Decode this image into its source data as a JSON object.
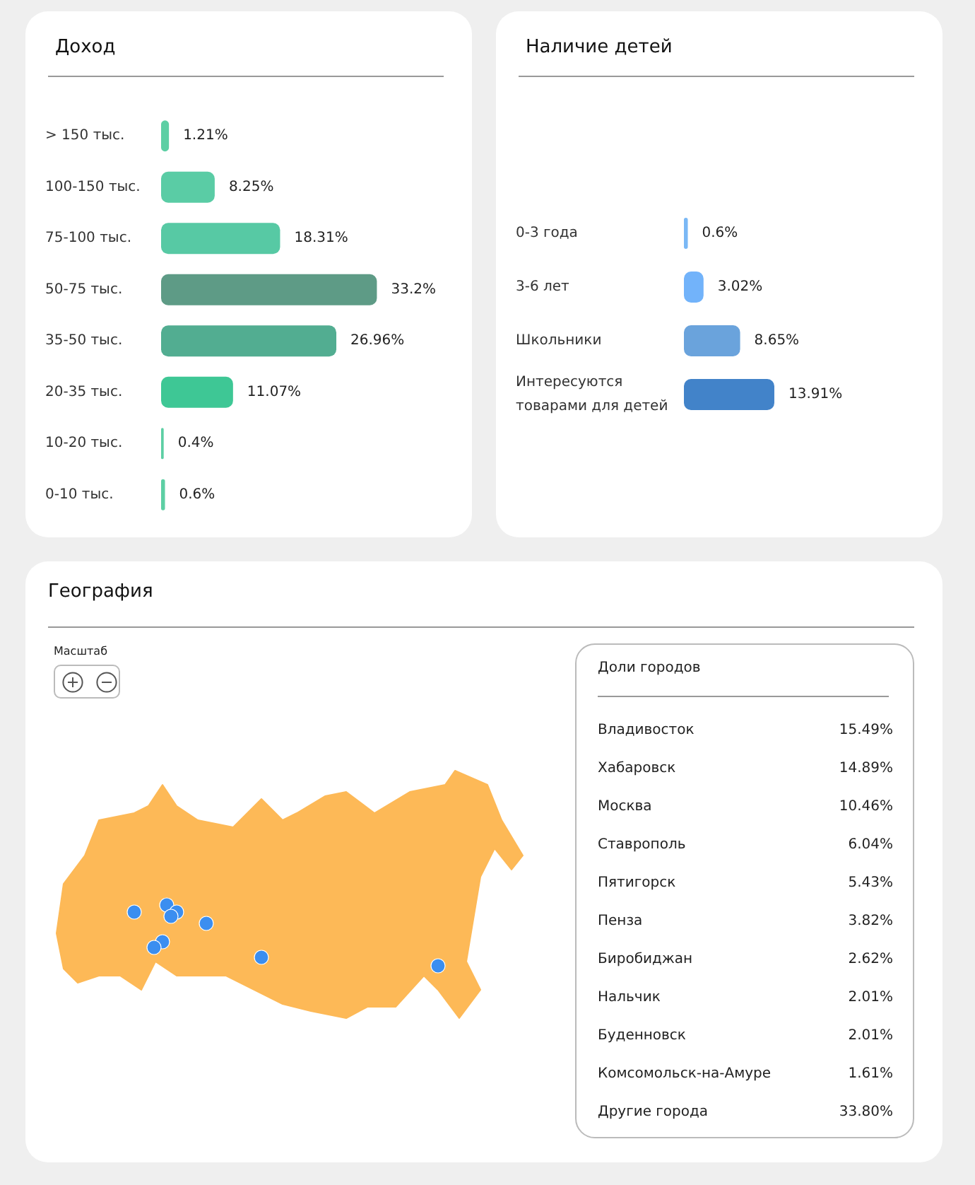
{
  "chart_data": [
    {
      "type": "bar",
      "orientation": "horizontal",
      "title": "Доход",
      "categories": [
        "> 150 тыс.",
        "100-150 тыс.",
        "75-100 тыс.",
        "50-75 тыс.",
        "35-50 тыс.",
        "20-35 тыс.",
        "10-20 тыс.",
        "0-10 тыс."
      ],
      "values": [
        1.21,
        8.25,
        18.31,
        33.2,
        26.96,
        11.07,
        0.4,
        0.6
      ],
      "value_labels": [
        "1.21%",
        "8.25%",
        "18.31%",
        "33.2%",
        "26.96%",
        "11.07%",
        "0.4%",
        "0.6%"
      ],
      "colors": [
        "#5dcfa4",
        "#5acca5",
        "#57c9a4",
        "#5e9b86",
        "#52ad91",
        "#3ec795",
        "#5dcfa4",
        "#5dcfa4"
      ]
    },
    {
      "type": "bar",
      "orientation": "horizontal",
      "title": "Наличие детей",
      "categories": [
        "0-3 года",
        "3-6 лет",
        "Школьники",
        "Интересуются товарами для детей"
      ],
      "values": [
        0.6,
        3.02,
        8.65,
        13.91
      ],
      "value_labels": [
        "0.6%",
        "3.02%",
        "8.65%",
        "13.91%"
      ],
      "colors": [
        "#7ab8f5",
        "#72b3fa",
        "#6aa3dc",
        "#4283c9"
      ]
    },
    {
      "type": "other",
      "title": "География",
      "subtitle": "Доли городов",
      "annotations": [
        "Масштаб"
      ],
      "categories": [
        "Владивосток",
        "Хабаровск",
        "Москва",
        "Ставрополь",
        "Пятигорск",
        "Пенза",
        "Биробиджан",
        "Нальчик",
        "Буденновск",
        "Комсомольск-на-Амуре",
        "Другие города"
      ],
      "value_labels": [
        "15.49%",
        "14.89%",
        "10.46%",
        "6.04%",
        "5.43%",
        "3.82%",
        "2.62%",
        "2.01%",
        "2.01%",
        "1.61%",
        "33.80%"
      ]
    }
  ]
}
